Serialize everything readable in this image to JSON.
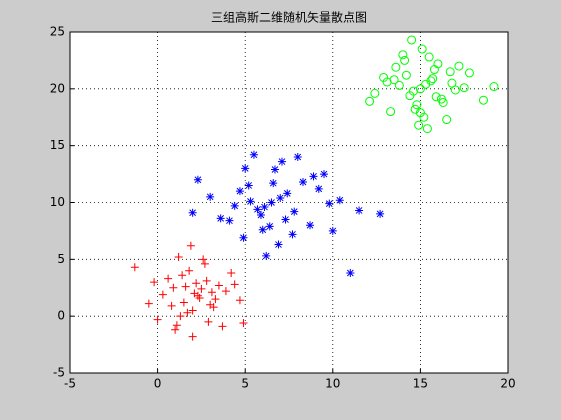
{
  "chart_data": {
    "type": "scatter",
    "title": "三组高斯二维随机矢量散点图",
    "xlim": [
      -5,
      20
    ],
    "xticks": [
      -5,
      0,
      5,
      10,
      15,
      20
    ],
    "ylim": [
      -5,
      25
    ],
    "yticks": [
      -5,
      0,
      5,
      10,
      15,
      20,
      25
    ],
    "grid": true,
    "series": [
      {
        "color": "#ff0000",
        "marker": "+",
        "x": [
          2.1,
          1.5,
          2.8,
          0.9,
          3.2,
          1.8,
          2.4,
          0.3,
          3.9,
          1.1,
          2.6,
          1.7,
          -1.3,
          4.7,
          2.0,
          0.6,
          3.5,
          1.3,
          2.9,
          2.2,
          4.2,
          -0.5,
          1.9,
          3.0,
          0.0,
          2.5,
          1.4,
          3.7,
          0.8,
          2.3,
          4.9,
          1.6,
          2.7,
          -0.2,
          3.3,
          1.0,
          2.0,
          4.4,
          1.2,
          3.1
        ],
        "values": [
          2.0,
          1.2,
          3.1,
          2.5,
          0.8,
          4.0,
          1.6,
          1.9,
          2.2,
          -0.8,
          5.0,
          0.3,
          4.3,
          1.4,
          -1.8,
          3.3,
          2.7,
          0.0,
          -0.5,
          2.9,
          3.8,
          1.1,
          6.2,
          1.0,
          -0.3,
          2.4,
          3.6,
          -0.9,
          0.9,
          1.8,
          -0.6,
          2.6,
          4.6,
          3.0,
          1.5,
          -1.2,
          0.5,
          2.8,
          5.2,
          2.1
        ]
      },
      {
        "color": "#0000ff",
        "marker": "*",
        "x": [
          6.5,
          5.2,
          7.8,
          4.1,
          8.9,
          6.0,
          7.1,
          3.0,
          9.8,
          5.5,
          6.9,
          4.7,
          12.7,
          11.0,
          7.4,
          5.9,
          8.3,
          2.3,
          6.2,
          7.7,
          10.4,
          4.4,
          6.7,
          8.7,
          5.0,
          3.6,
          9.2,
          6.4,
          7.0,
          5.7,
          11.5,
          4.9,
          8.0,
          6.6,
          2.0,
          7.3,
          9.5,
          5.3,
          6.1,
          10.0
        ],
        "values": [
          10.0,
          11.5,
          9.2,
          8.4,
          12.3,
          7.6,
          13.6,
          10.5,
          9.9,
          14.2,
          6.3,
          11.0,
          9.0,
          3.8,
          10.8,
          8.9,
          11.8,
          12.0,
          5.3,
          7.2,
          10.2,
          9.7,
          12.9,
          8.0,
          13.0,
          8.6,
          11.2,
          7.9,
          10.4,
          9.4,
          9.3,
          6.9,
          14.0,
          11.7,
          9.1,
          8.5,
          12.5,
          10.1,
          9.6,
          7.5
        ]
      },
      {
        "color": "#00ff00",
        "marker": "o",
        "x": [
          15.0,
          14.2,
          15.9,
          13.1,
          16.7,
          14.7,
          15.5,
          12.4,
          17.5,
          14.0,
          15.2,
          13.6,
          16.3,
          14.5,
          15.7,
          18.6,
          13.3,
          16.0,
          14.9,
          15.3,
          17.0,
          12.9,
          14.4,
          16.5,
          15.1,
          13.8,
          17.8,
          14.8,
          15.6,
          16.2,
          19.2,
          14.1,
          15.4,
          13.5,
          16.8,
          15.8,
          12.1,
          14.6,
          17.2,
          15.0
        ],
        "values": [
          20.0,
          21.2,
          19.3,
          20.6,
          21.5,
          18.2,
          22.8,
          19.6,
          20.1,
          23.0,
          17.5,
          21.9,
          18.8,
          24.3,
          20.9,
          19.0,
          18.0,
          22.2,
          16.8,
          20.4,
          19.9,
          21.0,
          19.4,
          17.3,
          23.5,
          20.3,
          21.4,
          18.6,
          20.7,
          19.1,
          20.2,
          22.5,
          16.5,
          20.8,
          20.5,
          21.7,
          18.9,
          19.8,
          22.0,
          17.9
        ]
      }
    ]
  }
}
